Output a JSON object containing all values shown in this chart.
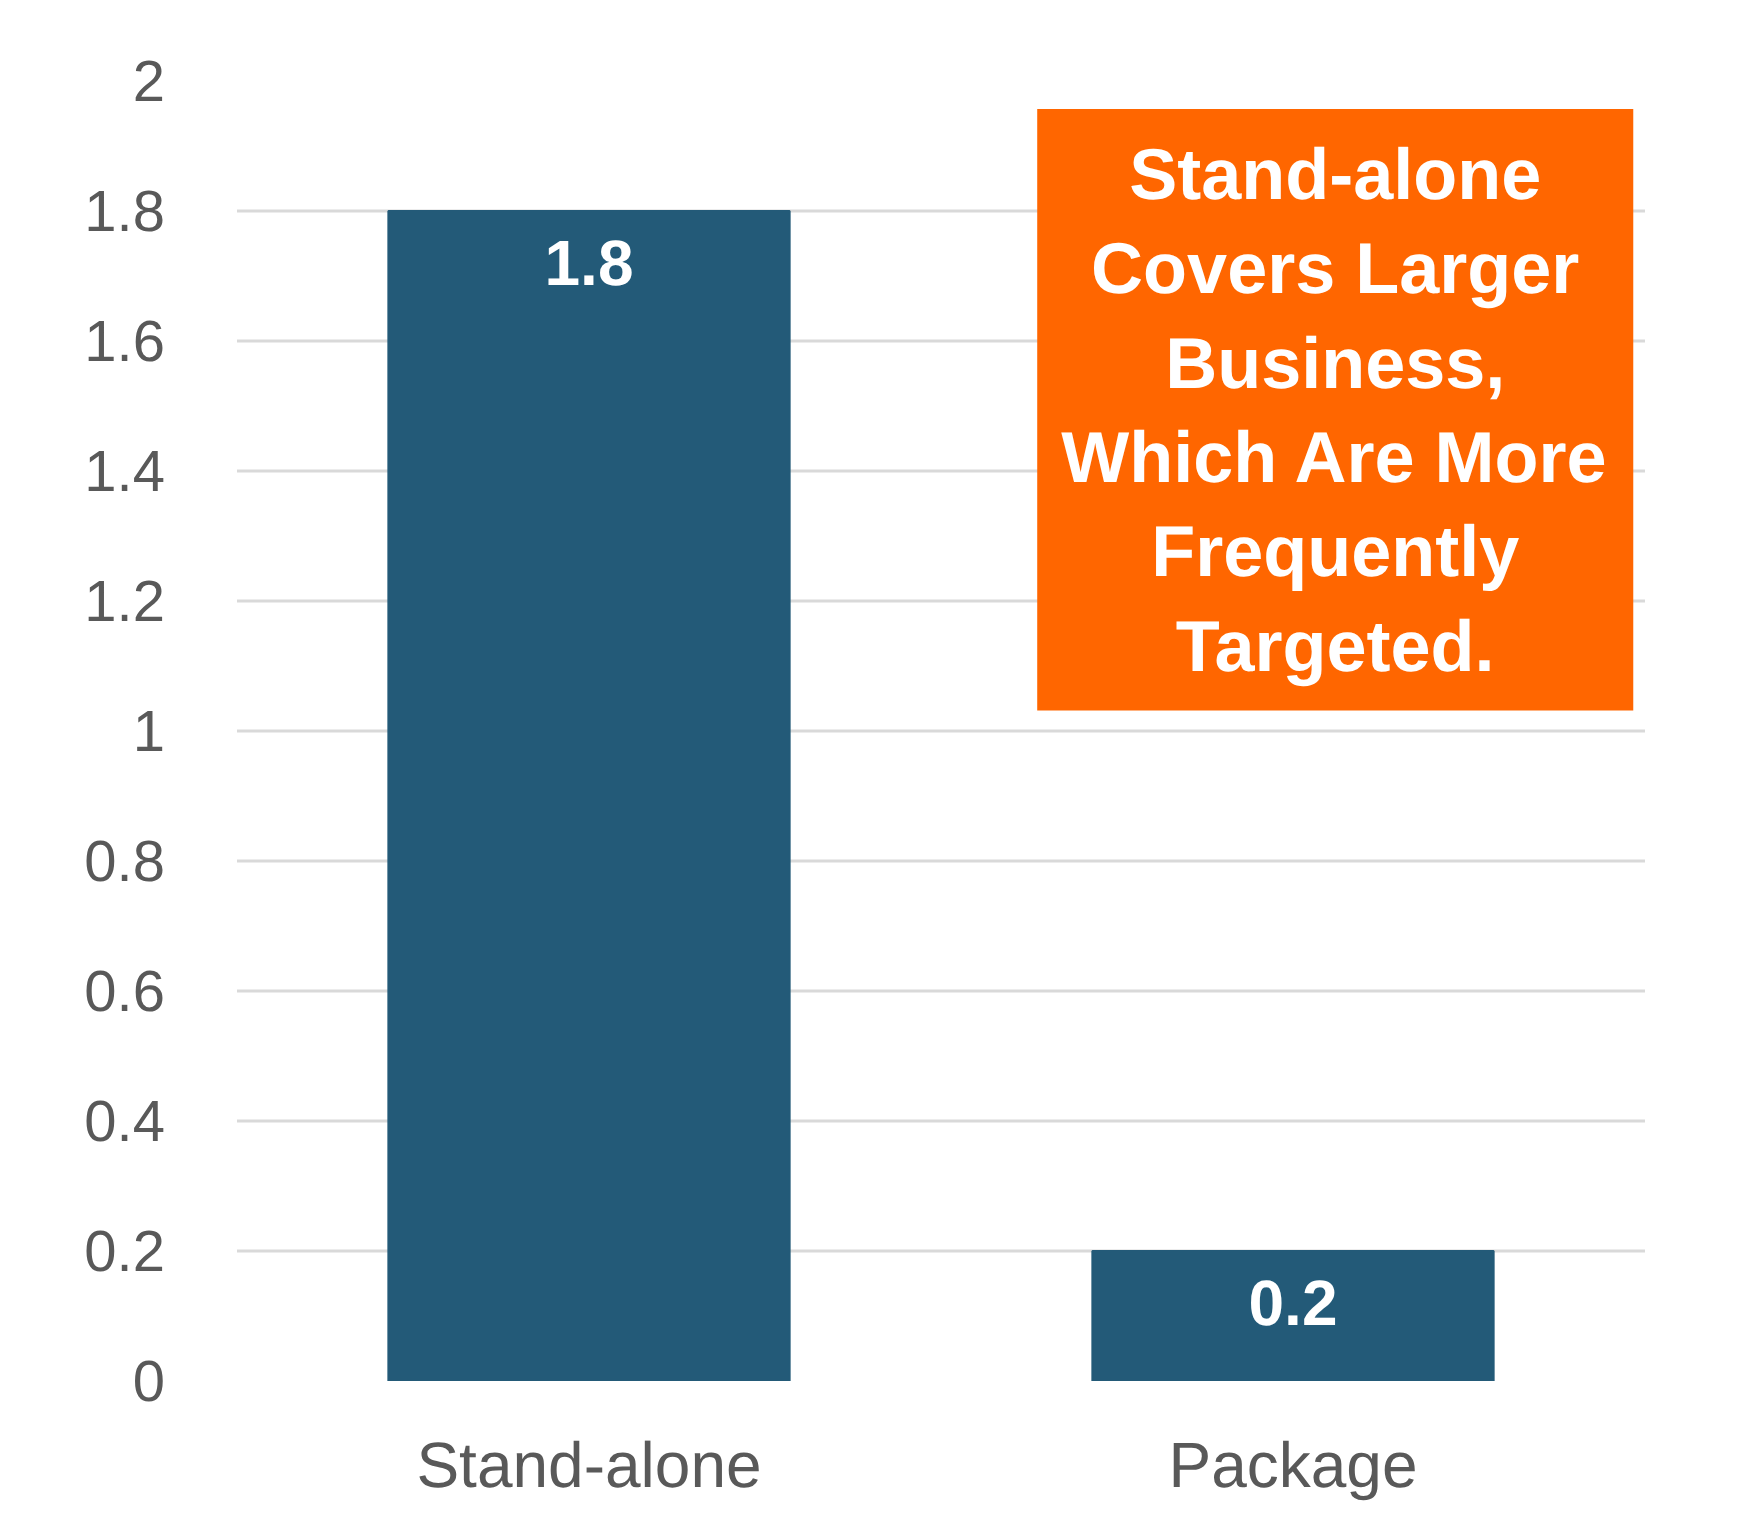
{
  "chart_data": {
    "type": "bar",
    "categories": [
      "Stand-alone",
      "Package"
    ],
    "values": [
      1.8,
      0.2
    ],
    "color": "#235a78",
    "ylim": [
      0,
      2
    ],
    "yticks": [
      0,
      0.2,
      0.4,
      0.6,
      0.8,
      1,
      1.2,
      1.4,
      1.6,
      1.8,
      2
    ],
    "grid": "y",
    "data_labels": true,
    "annotations": [
      "Stand-alone Covers Larger Business, Which Are More Frequently Targeted."
    ]
  }
}
